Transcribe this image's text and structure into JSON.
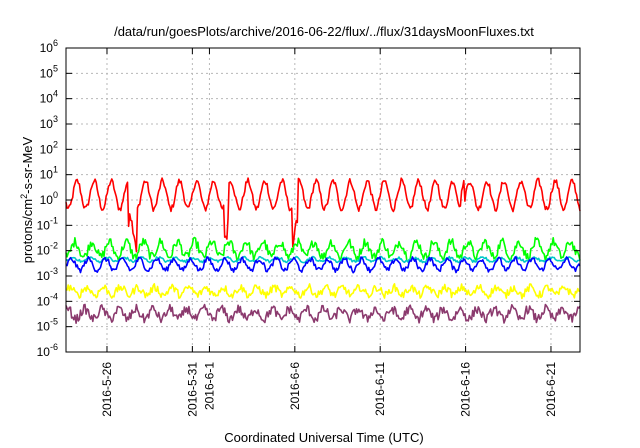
{
  "chart_data": {
    "type": "line",
    "title": "/data/run/goesPlots/archive/2016-06-22/flux/../flux/31daysMoonFluxes.txt",
    "xlabel": "Coordinated Universal Time (UTC)",
    "ylabel": {
      "base": "protons/cm",
      "sup": "2",
      "rest": "-s-sr-MeV"
    },
    "yscale": "log",
    "ylim_exp": [
      -6,
      6
    ],
    "ytick_exponents": [
      -6,
      -5,
      -4,
      -3,
      -2,
      -1,
      0,
      1,
      2,
      3,
      4,
      5,
      6
    ],
    "ytick_base": "10",
    "xlim_days": [
      -0.4,
      29.7
    ],
    "xticks": [
      {
        "day": 2,
        "label": "2016-5-26"
      },
      {
        "day": 7,
        "label": "2016-5-31"
      },
      {
        "day": 8,
        "label": "2016-6-1"
      },
      {
        "day": 13,
        "label": "2016-6-6"
      },
      {
        "day": 18,
        "label": "2016-6-11"
      },
      {
        "day": 23,
        "label": "2016-6-16"
      },
      {
        "day": 28,
        "label": "2016-6-21"
      }
    ],
    "grid": true,
    "series_note": "six unlabeled proton-flux traces; approximate log10 levels with diurnal oscillation",
    "series": [
      {
        "color": "#ff0000",
        "level": 0.2,
        "amp": 0.55,
        "noise": 0.12,
        "dips": true
      },
      {
        "color": "#00ff00",
        "level": -1.95,
        "amp": 0.3,
        "noise": 0.18
      },
      {
        "color": "#00c8c8",
        "level": -2.35,
        "amp": 0.08,
        "noise": 0.05
      },
      {
        "color": "#0000ff",
        "level": -2.55,
        "amp": 0.22,
        "noise": 0.1
      },
      {
        "color": "#ffff00",
        "level": -3.6,
        "amp": 0.15,
        "noise": 0.15
      },
      {
        "color": "#8b3a6e",
        "level": -4.5,
        "amp": 0.2,
        "noise": 0.18
      }
    ]
  }
}
